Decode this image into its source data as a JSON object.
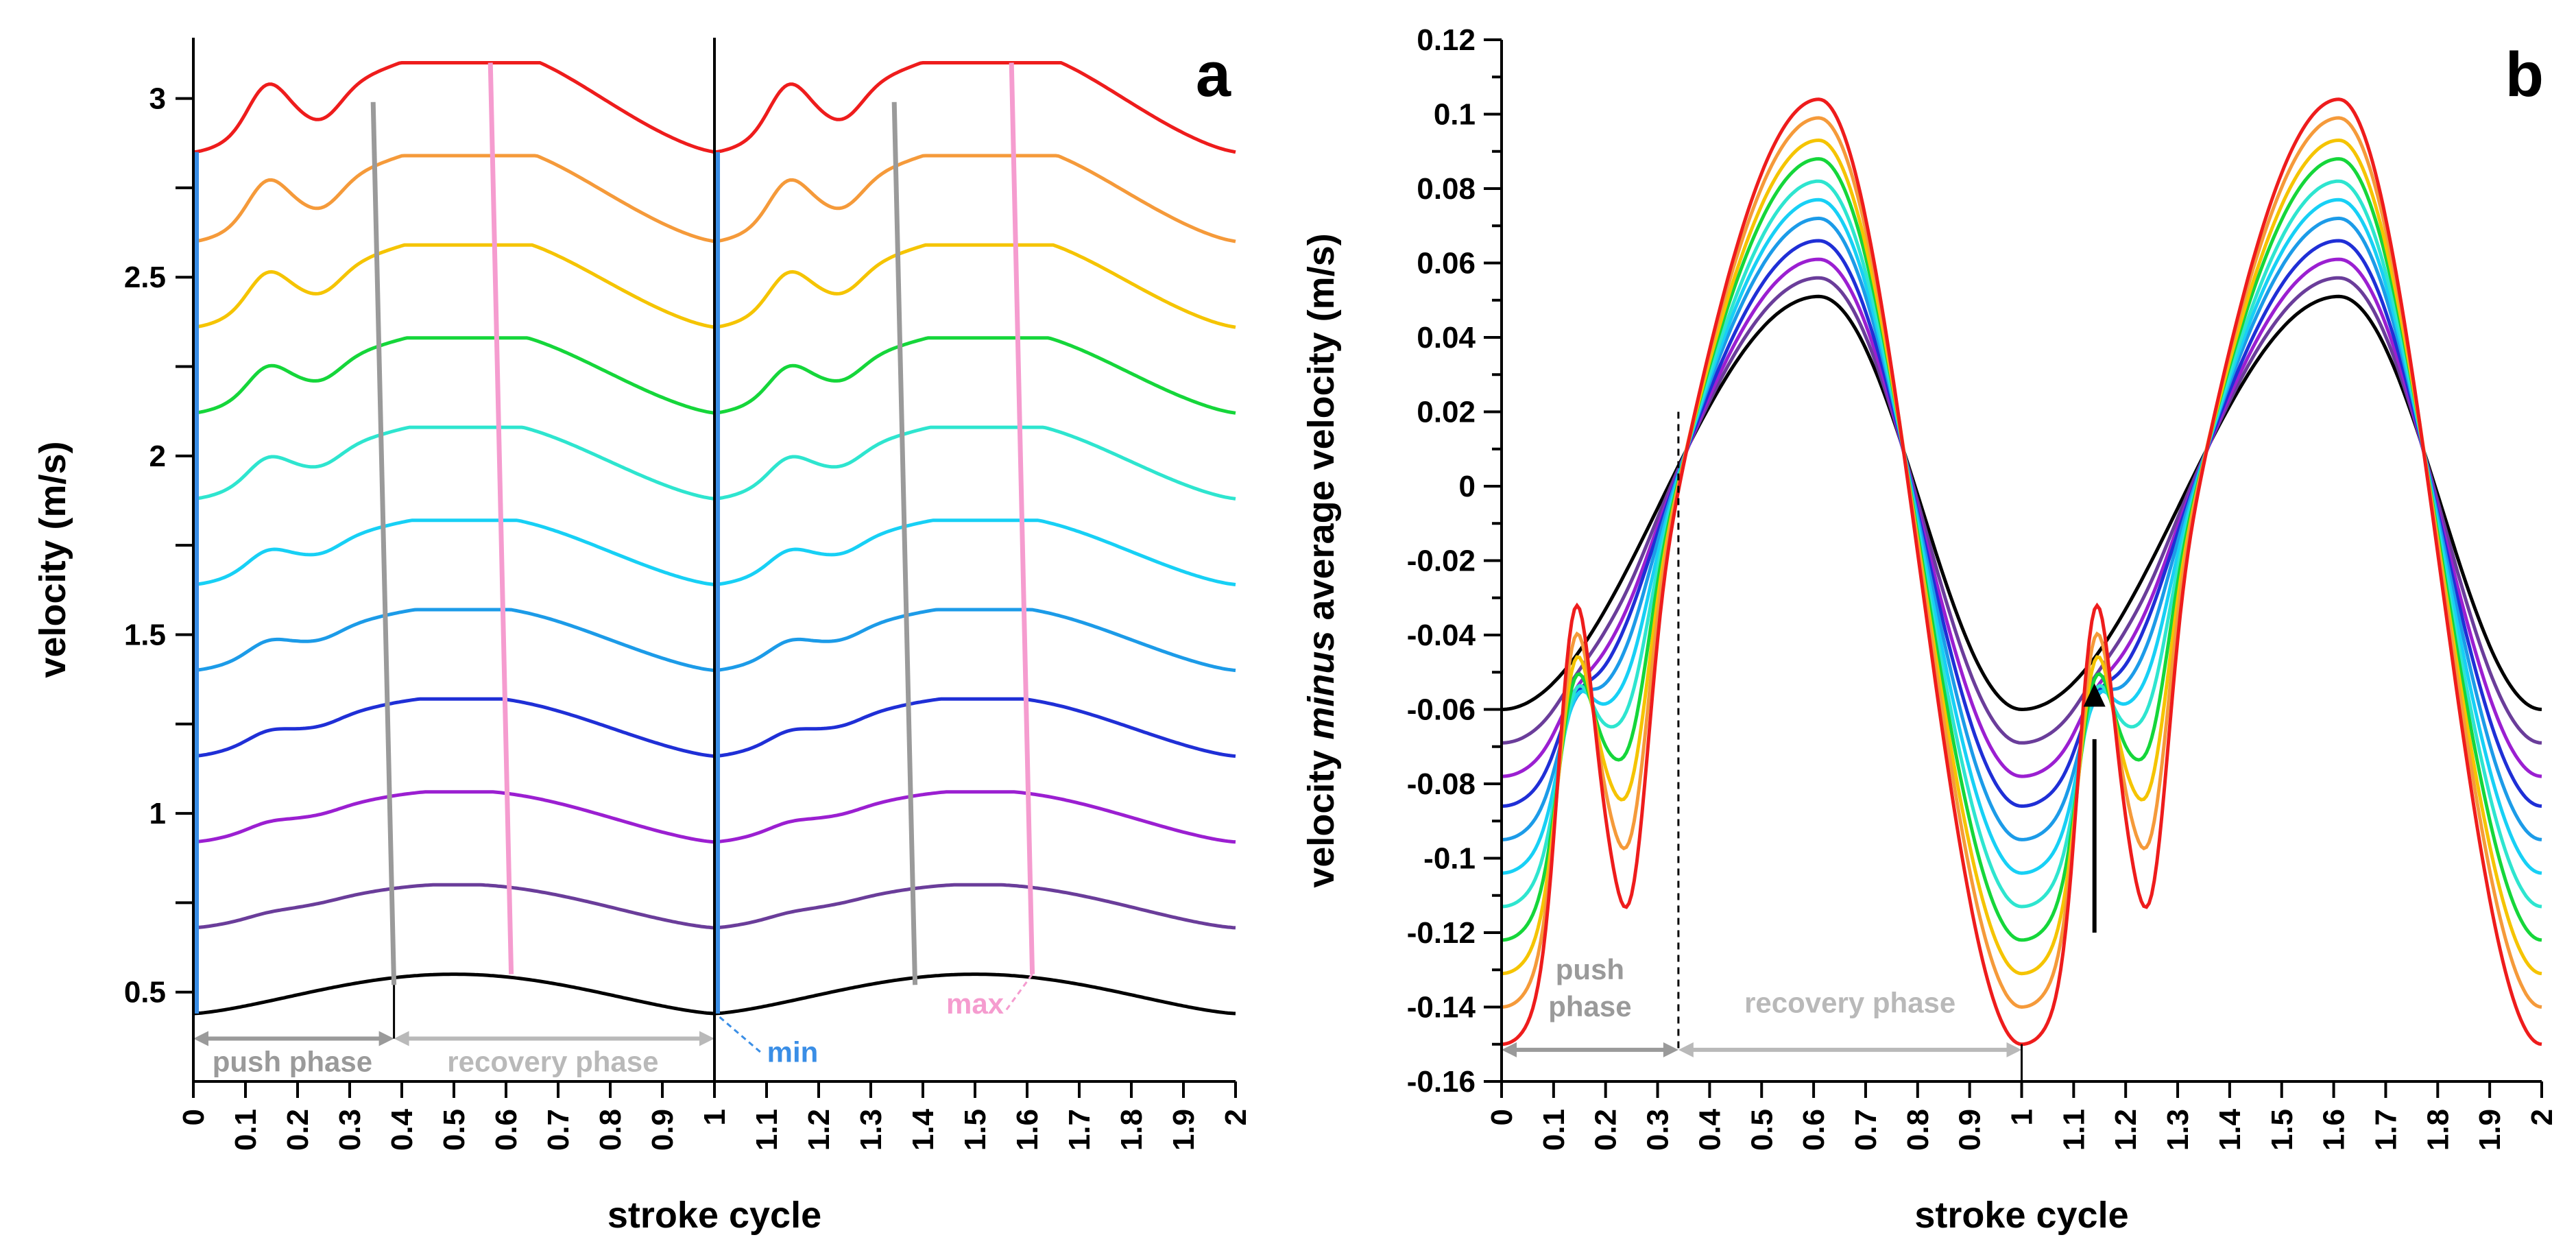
{
  "chart_data": [
    {
      "panel": "a",
      "type": "line",
      "xlabel": "stroke cycle",
      "ylabel": "velocity (m/s)",
      "xlim": [
        0,
        2
      ],
      "ylim": [
        0.25,
        3.17
      ],
      "xticks": [
        "0",
        "0.1",
        "0.2",
        "0.3",
        "0.4",
        "0.5",
        "0.6",
        "0.7",
        "0.8",
        "0.9",
        "1",
        "1.1",
        "1.2",
        "1.3",
        "1.4",
        "1.5",
        "1.6",
        "1.7",
        "1.8",
        "1.9",
        "2"
      ],
      "yticks": [
        "0.5",
        "1",
        "1.5",
        "2",
        "2.5",
        "3"
      ],
      "series_colors": [
        "#000000",
        "#6a3d9a",
        "#9b1fd1",
        "#1f2fd6",
        "#1c9be8",
        "#17d0f5",
        "#2ee5cf",
        "#15d63a",
        "#f5c400",
        "#f59a3a",
        "#ee1c1c"
      ],
      "series_mins": [
        0.44,
        0.68,
        0.92,
        1.16,
        1.4,
        1.64,
        1.88,
        2.12,
        2.36,
        2.6,
        2.85
      ],
      "series_maxs": [
        0.55,
        0.8,
        1.06,
        1.32,
        1.57,
        1.82,
        2.08,
        2.33,
        2.59,
        2.84,
        3.1
      ],
      "annotations": {
        "push_phase": "push phase",
        "recovery_phase": "recovery phase",
        "min": "min",
        "max": "max"
      },
      "phase_boundaries": [
        0,
        0.385,
        1
      ],
      "panel_letter": "a"
    },
    {
      "panel": "b",
      "type": "line",
      "xlabel": "stroke cycle",
      "ylabel_parts": [
        "velocity ",
        "minus",
        " average velocity (m/s)"
      ],
      "xlim": [
        0,
        2
      ],
      "ylim": [
        -0.16,
        0.12
      ],
      "xticks": [
        "0",
        "0.1",
        "0.2",
        "0.3",
        "0.4",
        "0.5",
        "0.6",
        "0.7",
        "0.8",
        "0.9",
        "1",
        "1.1",
        "1.2",
        "1.3",
        "1.4",
        "1.5",
        "1.6",
        "1.7",
        "1.8",
        "1.9",
        "2"
      ],
      "yticks": [
        "-0.16",
        "-0.14",
        "-0.12",
        "-0.1",
        "-0.08",
        "-0.06",
        "-0.04",
        "-0.02",
        "0",
        "0.02",
        "0.04",
        "0.06",
        "0.08",
        "0.1",
        "0.12"
      ],
      "series_colors": [
        "#000000",
        "#6a3d9a",
        "#9b1fd1",
        "#1f2fd6",
        "#1c9be8",
        "#17d0f5",
        "#2ee5cf",
        "#15d63a",
        "#f5c400",
        "#f59a3a",
        "#ee1c1c"
      ],
      "series_peaks": [
        0.051,
        0.056,
        0.061,
        0.066,
        0.072,
        0.077,
        0.082,
        0.088,
        0.093,
        0.099,
        0.104
      ],
      "series_min_at_0": [
        -0.06,
        -0.069,
        -0.078,
        -0.086,
        -0.095,
        -0.104,
        -0.113,
        -0.122,
        -0.131,
        -0.14,
        -0.15
      ],
      "series_min_at_025": [
        -0.038,
        -0.038,
        -0.038,
        -0.038,
        -0.046,
        -0.056,
        -0.066,
        -0.077,
        -0.087,
        -0.098,
        -0.11
      ],
      "annotations": {
        "push_phase_line1": "push",
        "push_phase_line2": "phase",
        "recovery_phase": "recovery phase"
      },
      "phase_boundaries": [
        0,
        0.34,
        1
      ],
      "panel_letter": "b"
    }
  ]
}
